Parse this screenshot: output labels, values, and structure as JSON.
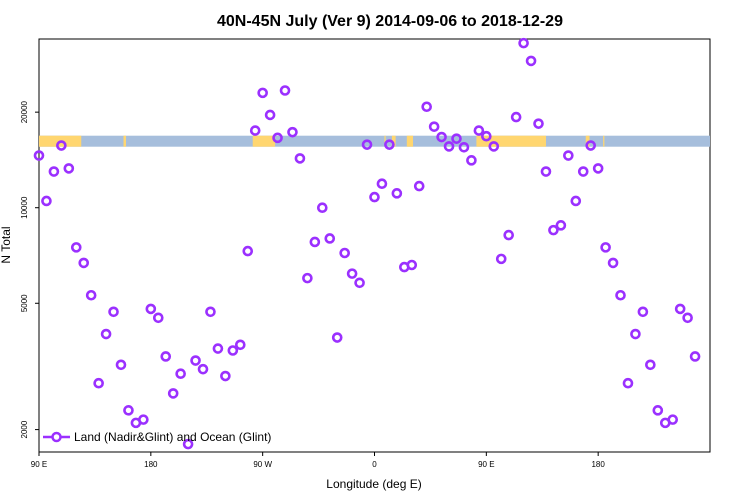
{
  "chart_data": {
    "type": "scatter",
    "title": "40N-45N July (Ver 9)   2014-09-06 to 2018-12-29",
    "xlabel": "Longitude (deg E)",
    "ylabel": "N Total",
    "xlim": [
      -90,
      180
    ],
    "ylim": [
      1700,
      34000
    ],
    "y_scale": "log",
    "grid": false,
    "x_ticks": [
      {
        "value": -90,
        "label": "90 E"
      },
      {
        "value": -45,
        "label": "180"
      },
      {
        "value": 0,
        "label": "90 W"
      },
      {
        "value": 45,
        "label": "0"
      },
      {
        "value": 90,
        "label": "90 E"
      },
      {
        "value": 135,
        "label": "180"
      }
    ],
    "y_ticks": [
      {
        "value": 2000,
        "label": "2000"
      },
      {
        "value": 5000,
        "label": "5000"
      },
      {
        "value": 10000,
        "label": "10000"
      },
      {
        "value": 20000,
        "label": "20000"
      }
    ],
    "legend": {
      "position": "bottom-left"
    },
    "series": [
      {
        "name": "Land (Nadir&Glint) and Ocean (Glint)",
        "color": "#9b30ff",
        "points": [
          [
            -90,
            14600
          ],
          [
            -87,
            10500
          ],
          [
            -84,
            13000
          ],
          [
            -81,
            15700
          ],
          [
            -78,
            13300
          ],
          [
            -75,
            7500
          ],
          [
            -72,
            6700
          ],
          [
            -69,
            5300
          ],
          [
            -66,
            2800
          ],
          [
            -63,
            4000
          ],
          [
            -60,
            4700
          ],
          [
            -57,
            3200
          ],
          [
            -54,
            2300
          ],
          [
            -51,
            2100
          ],
          [
            -48,
            2150
          ],
          [
            -45,
            4800
          ],
          [
            -42,
            4500
          ],
          [
            -39,
            3400
          ],
          [
            -36,
            2600
          ],
          [
            -33,
            3000
          ],
          [
            -30,
            1800
          ],
          [
            -27,
            3300
          ],
          [
            -24,
            3100
          ],
          [
            -21,
            4700
          ],
          [
            -18,
            3600
          ],
          [
            -15,
            2950
          ],
          [
            -12,
            3550
          ],
          [
            -9,
            3700
          ],
          [
            -6,
            7300
          ],
          [
            -3,
            17500
          ],
          [
            0,
            23000
          ],
          [
            3,
            19600
          ],
          [
            6,
            16600
          ],
          [
            9,
            23400
          ],
          [
            12,
            17300
          ],
          [
            15,
            14300
          ],
          [
            18,
            6000
          ],
          [
            21,
            7800
          ],
          [
            24,
            10000
          ],
          [
            27,
            8000
          ],
          [
            30,
            3900
          ],
          [
            33,
            7200
          ],
          [
            36,
            6200
          ],
          [
            39,
            5800
          ],
          [
            42,
            15800
          ],
          [
            45,
            10800
          ],
          [
            48,
            11900
          ],
          [
            51,
            15800
          ],
          [
            54,
            11100
          ],
          [
            57,
            6500
          ],
          [
            60,
            6600
          ],
          [
            63,
            11700
          ],
          [
            66,
            20800
          ],
          [
            69,
            18000
          ],
          [
            72,
            16700
          ],
          [
            75,
            15600
          ],
          [
            78,
            16500
          ],
          [
            81,
            15500
          ],
          [
            84,
            14100
          ],
          [
            87,
            17500
          ],
          [
            90,
            16800
          ],
          [
            93,
            15600
          ],
          [
            96,
            6900
          ],
          [
            99,
            8200
          ],
          [
            102,
            19300
          ],
          [
            105,
            33000
          ],
          [
            108,
            29000
          ],
          [
            111,
            18400
          ],
          [
            114,
            13000
          ],
          [
            117,
            8500
          ],
          [
            120,
            8800
          ],
          [
            123,
            14600
          ],
          [
            126,
            10500
          ],
          [
            129,
            13000
          ],
          [
            132,
            15700
          ],
          [
            135,
            13300
          ],
          [
            138,
            7500
          ],
          [
            141,
            6700
          ],
          [
            144,
            5300
          ],
          [
            147,
            2800
          ],
          [
            150,
            4000
          ],
          [
            153,
            4700
          ],
          [
            156,
            3200
          ],
          [
            159,
            2300
          ],
          [
            162,
            2100
          ],
          [
            165,
            2150
          ],
          [
            168,
            4800
          ],
          [
            171,
            4500
          ],
          [
            174,
            3400
          ]
        ]
      }
    ],
    "band": {
      "y_value": 16200,
      "colors": {
        "land": "#ffd670",
        "ocean": "#a6bedc"
      }
    },
    "bottom_left_label": "90 E",
    "bottom_right_label": "180"
  }
}
